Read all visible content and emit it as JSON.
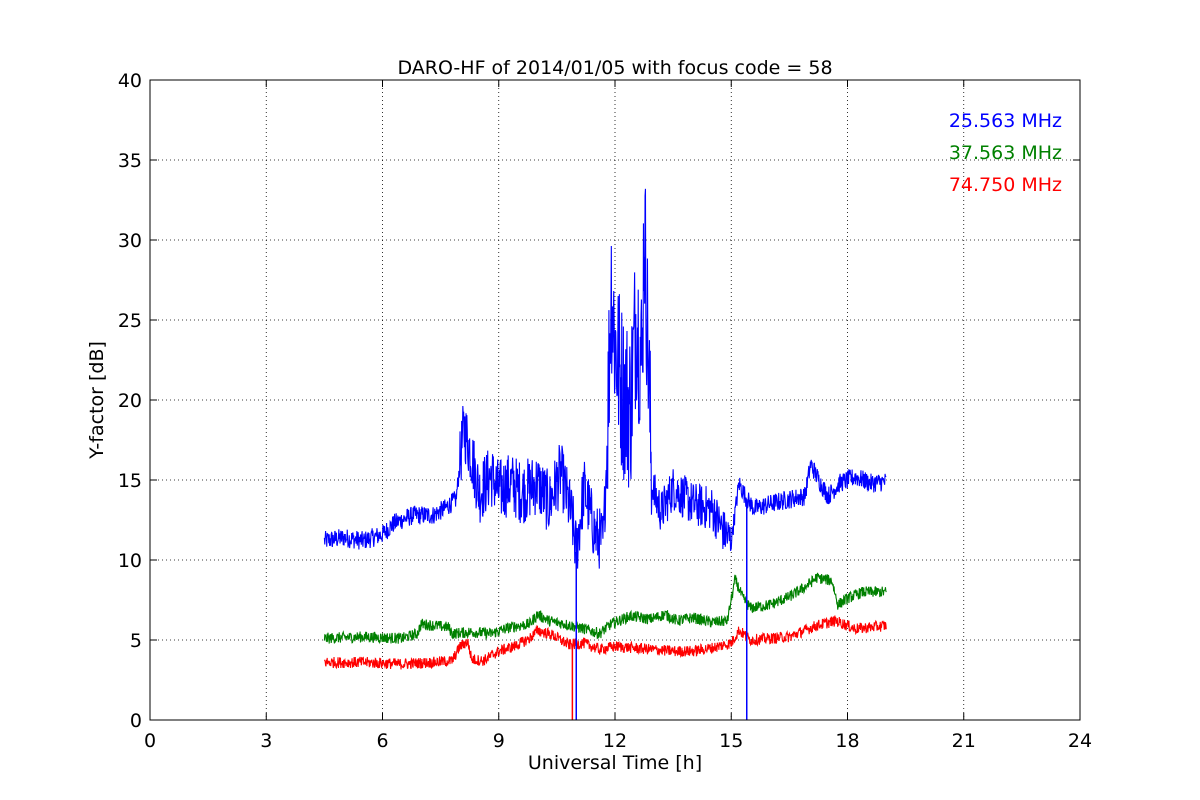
{
  "chart_data": {
    "type": "line",
    "title": "DARO-HF of 2014/01/05 with focus code = 58",
    "xlabel": "Universal Time [h]",
    "ylabel": "Y-factor [dB]",
    "xlim": [
      0,
      24
    ],
    "ylim": [
      0,
      40
    ],
    "xticks": [
      0,
      3,
      6,
      9,
      12,
      15,
      18,
      21,
      24
    ],
    "yticks": [
      0,
      5,
      10,
      15,
      20,
      25,
      30,
      35,
      40
    ],
    "grid": true,
    "legend_position": "top-right",
    "series": [
      {
        "name": "25.563 MHz",
        "color": "#0000ff",
        "points": [
          [
            4.5,
            11.2
          ],
          [
            5.0,
            11.4
          ],
          [
            5.5,
            11.2
          ],
          [
            6.0,
            11.6
          ],
          [
            6.3,
            12.3
          ],
          [
            6.8,
            12.8
          ],
          [
            7.3,
            12.8
          ],
          [
            7.6,
            13.2
          ],
          [
            7.9,
            13.8
          ],
          [
            8.1,
            18.3
          ],
          [
            8.3,
            16.5
          ],
          [
            8.5,
            14.2
          ],
          [
            8.8,
            15.3
          ],
          [
            9.0,
            14.3
          ],
          [
            9.3,
            14.8
          ],
          [
            9.6,
            14.2
          ],
          [
            10.0,
            14.8
          ],
          [
            10.3,
            13.5
          ],
          [
            10.6,
            15.5
          ],
          [
            10.9,
            12.5
          ],
          [
            11.0,
            10.5
          ],
          [
            11.2,
            14.5
          ],
          [
            11.5,
            11.5
          ],
          [
            11.7,
            11.2
          ],
          [
            11.8,
            17.5
          ],
          [
            11.9,
            27.5
          ],
          [
            12.0,
            23.5
          ],
          [
            12.2,
            20.5
          ],
          [
            12.4,
            19.5
          ],
          [
            12.55,
            25.5
          ],
          [
            12.7,
            22.0
          ],
          [
            12.75,
            31.5
          ],
          [
            12.85,
            23.5
          ],
          [
            12.95,
            14.5
          ],
          [
            13.2,
            13.0
          ],
          [
            13.5,
            14.5
          ],
          [
            14.0,
            13.5
          ],
          [
            14.5,
            13.2
          ],
          [
            14.8,
            11.8
          ],
          [
            15.0,
            11.2
          ],
          [
            15.2,
            14.8
          ],
          [
            15.4,
            13.8
          ],
          [
            15.6,
            13.2
          ],
          [
            16.0,
            13.5
          ],
          [
            16.5,
            13.8
          ],
          [
            16.9,
            14.0
          ],
          [
            17.05,
            16.0
          ],
          [
            17.3,
            14.8
          ],
          [
            17.5,
            14.0
          ],
          [
            17.8,
            14.8
          ],
          [
            18.2,
            15.2
          ],
          [
            18.6,
            14.8
          ],
          [
            19.0,
            14.9
          ]
        ]
      },
      {
        "name": "37.563 MHz",
        "color": "#008000",
        "points": [
          [
            4.5,
            5.1
          ],
          [
            5.5,
            5.2
          ],
          [
            6.5,
            5.1
          ],
          [
            6.9,
            5.4
          ],
          [
            7.0,
            6.0
          ],
          [
            7.7,
            5.8
          ],
          [
            7.8,
            5.4
          ],
          [
            8.3,
            5.5
          ],
          [
            8.8,
            5.4
          ],
          [
            9.3,
            5.8
          ],
          [
            9.8,
            6.0
          ],
          [
            10.0,
            6.6
          ],
          [
            10.3,
            6.2
          ],
          [
            10.7,
            6.0
          ],
          [
            11.2,
            5.7
          ],
          [
            11.6,
            5.4
          ],
          [
            11.9,
            6.0
          ],
          [
            12.4,
            6.5
          ],
          [
            12.9,
            6.3
          ],
          [
            13.3,
            6.6
          ],
          [
            13.6,
            6.2
          ],
          [
            14.0,
            6.4
          ],
          [
            14.5,
            6.1
          ],
          [
            14.9,
            6.2
          ],
          [
            15.1,
            8.8
          ],
          [
            15.3,
            7.6
          ],
          [
            15.5,
            7.0
          ],
          [
            16.0,
            7.2
          ],
          [
            16.5,
            7.7
          ],
          [
            16.9,
            8.3
          ],
          [
            17.2,
            8.9
          ],
          [
            17.6,
            8.7
          ],
          [
            17.75,
            7.2
          ],
          [
            18.0,
            7.6
          ],
          [
            18.4,
            8.0
          ],
          [
            19.0,
            8.0
          ]
        ]
      },
      {
        "name": "74.750 MHz",
        "color": "#ff0000",
        "points": [
          [
            4.5,
            3.6
          ],
          [
            5.5,
            3.6
          ],
          [
            6.5,
            3.5
          ],
          [
            7.3,
            3.6
          ],
          [
            7.8,
            3.7
          ],
          [
            8.0,
            4.6
          ],
          [
            8.2,
            4.9
          ],
          [
            8.3,
            3.8
          ],
          [
            8.6,
            3.7
          ],
          [
            9.0,
            4.3
          ],
          [
            9.4,
            4.6
          ],
          [
            9.8,
            5.1
          ],
          [
            10.0,
            5.6
          ],
          [
            10.4,
            5.3
          ],
          [
            10.8,
            4.7
          ],
          [
            11.2,
            4.8
          ],
          [
            11.6,
            4.4
          ],
          [
            12.0,
            4.6
          ],
          [
            12.5,
            4.5
          ],
          [
            13.0,
            4.4
          ],
          [
            13.5,
            4.3
          ],
          [
            14.0,
            4.3
          ],
          [
            14.5,
            4.5
          ],
          [
            15.0,
            4.8
          ],
          [
            15.2,
            5.6
          ],
          [
            15.5,
            5.0
          ],
          [
            16.0,
            5.1
          ],
          [
            16.5,
            5.2
          ],
          [
            16.8,
            5.5
          ],
          [
            17.2,
            5.9
          ],
          [
            17.7,
            6.2
          ],
          [
            18.2,
            5.7
          ],
          [
            18.6,
            5.8
          ],
          [
            19.0,
            5.9
          ]
        ]
      }
    ],
    "annotations": [
      {
        "series": "25.563 MHz",
        "x": 11.0,
        "y": 0
      },
      {
        "series": "74.750 MHz",
        "x": 10.9,
        "y": 0
      },
      {
        "series": "25.563 MHz",
        "x": 15.4,
        "y": 0
      }
    ]
  }
}
